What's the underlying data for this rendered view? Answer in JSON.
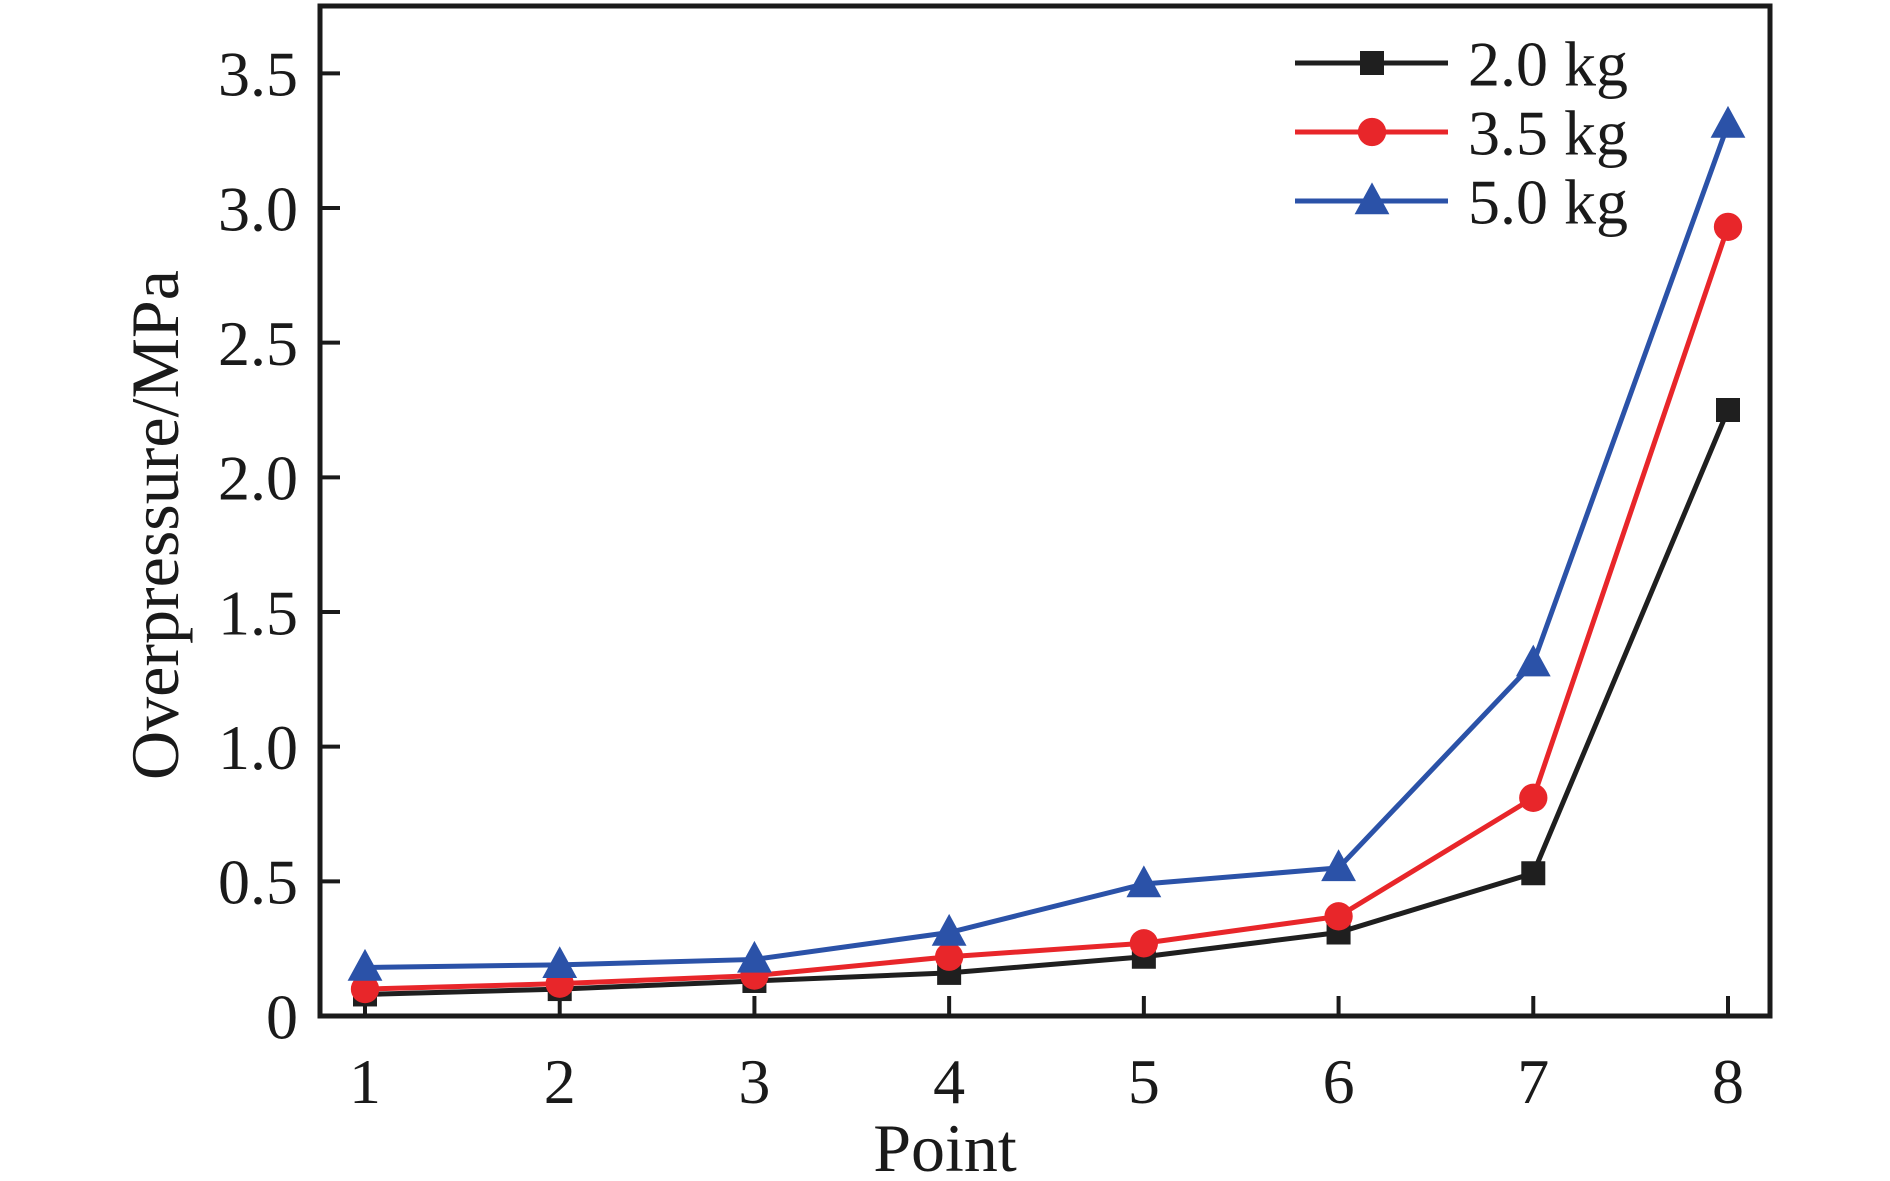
{
  "figure": {
    "background": "#ffffff",
    "text_color": "#1a1a1a"
  },
  "chart_data": {
    "type": "line",
    "title": "",
    "xlabel": "Point",
    "ylabel": "Overpressure/MPa",
    "x": [
      1,
      2,
      3,
      4,
      5,
      6,
      7,
      8
    ],
    "xtick_labels": [
      "1",
      "2",
      "3",
      "4",
      "5",
      "6",
      "7",
      "8"
    ],
    "yticks": [
      0,
      0.5,
      1.0,
      1.5,
      2.0,
      2.5,
      3.0,
      3.5
    ],
    "ytick_labels": [
      "0",
      "0.5",
      "1.0",
      "1.5",
      "2.0",
      "2.5",
      "3.0",
      "3.5"
    ],
    "ylim": [
      0,
      3.75
    ],
    "grid": false,
    "legend": {
      "position": "top-right-inside",
      "frame": false
    },
    "series": [
      {
        "name": "2.0 kg",
        "color": "#1f1f1f",
        "marker": "square",
        "values": [
          0.08,
          0.1,
          0.13,
          0.16,
          0.22,
          0.31,
          0.53,
          2.25
        ]
      },
      {
        "name": "3.5 kg",
        "color": "#e8262a",
        "marker": "circle",
        "values": [
          0.1,
          0.12,
          0.15,
          0.22,
          0.27,
          0.37,
          0.81,
          2.93
        ]
      },
      {
        "name": "5.0 kg",
        "color": "#2b52a8",
        "marker": "triangle-up",
        "values": [
          0.18,
          0.19,
          0.21,
          0.31,
          0.49,
          0.55,
          1.31,
          3.31
        ]
      }
    ]
  }
}
